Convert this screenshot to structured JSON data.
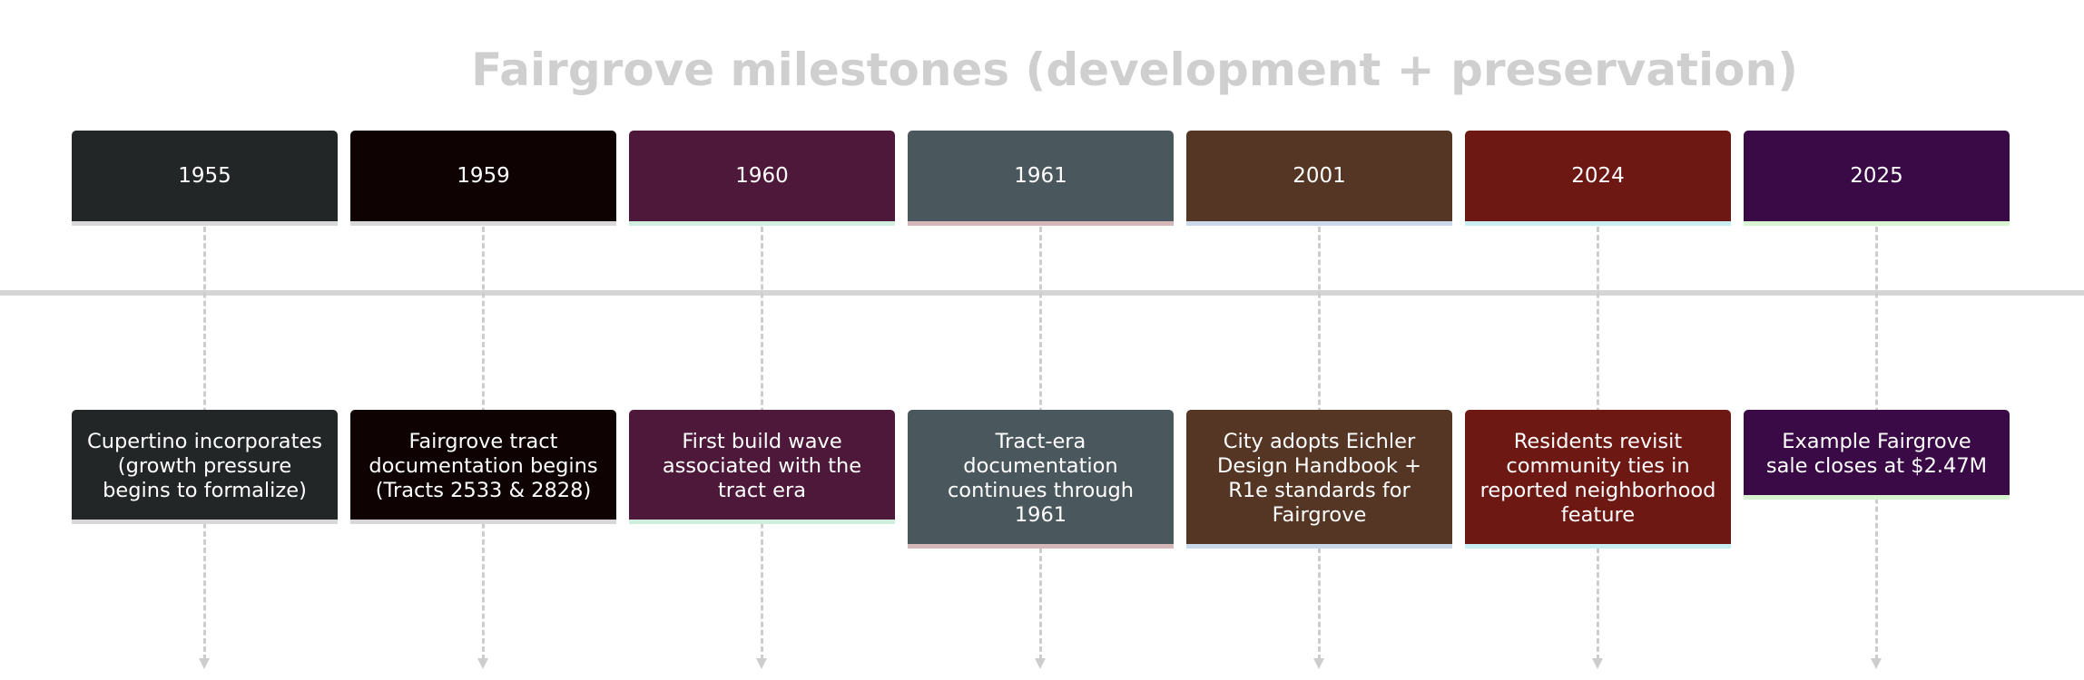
{
  "title": "Fairgrove milestones (development + preservation)",
  "milestones": [
    {
      "year": "1955",
      "event": "Cupertino incorporates (growth pressure begins to formalize)",
      "color": "#232626",
      "underline": "#d8d8d8"
    },
    {
      "year": "1959",
      "event": "Fairgrove tract documentation begins (Tracts 2533 & 2828)",
      "color": "#0e0203",
      "underline": "#d8d8d8"
    },
    {
      "year": "1960",
      "event": "First build wave associated with the tract era",
      "color": "#4e183b",
      "underline": "#cfeee0"
    },
    {
      "year": "1961",
      "event": "Tract-era documentation continues through 1961",
      "color": "#4a585e",
      "underline": "#d6b7b9"
    },
    {
      "year": "2001",
      "event": "City adopts Eichler Design Handbook + R1e standards for Fairgrove",
      "color": "#553624",
      "underline": "#c9d8ea"
    },
    {
      "year": "2024",
      "event": "Residents revisit community ties in reported neighborhood feature",
      "color": "#6e1813",
      "underline": "#c7eef2"
    },
    {
      "year": "2025",
      "event": "Example Fairgrove sale closes at $2.47M",
      "color": "#3a0a47",
      "underline": "#d5f4cf"
    }
  ]
}
